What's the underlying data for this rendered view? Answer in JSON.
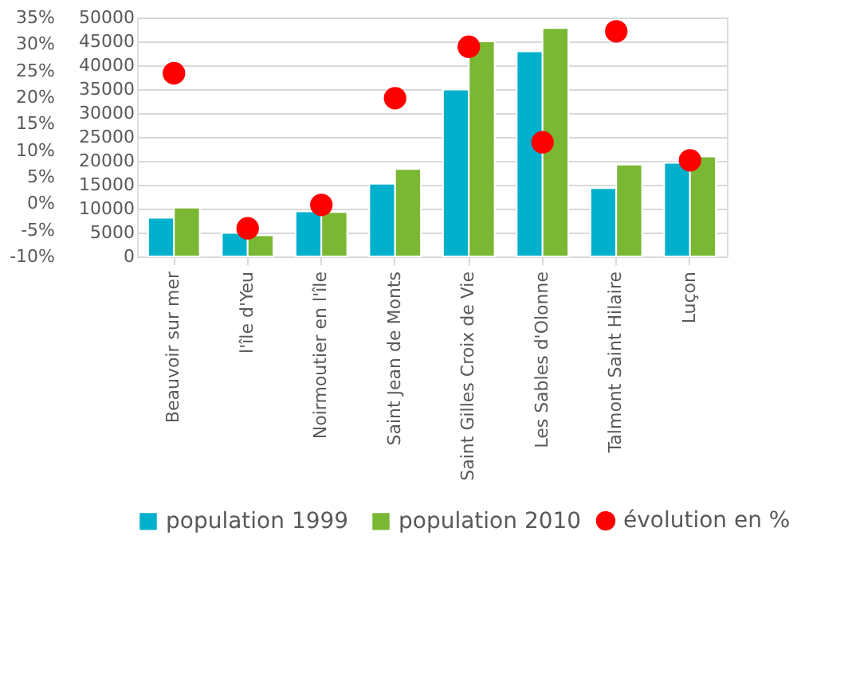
{
  "chart_data": {
    "type": "bar",
    "categories": [
      "Beauvoir sur mer",
      "l'île d'Yeu",
      "Noirmoutier en l'île",
      "Saint Jean de Monts",
      "Saint Gilles Croix de Vie",
      "Les Sables d'Olonne",
      "Talmont Saint Hilaire",
      "Luçon"
    ],
    "series": [
      {
        "name": "population 1999",
        "color": "#00b0cc",
        "values": [
          8100,
          4900,
          9400,
          15200,
          34900,
          42900,
          14300,
          19600
        ]
      },
      {
        "name": "population 2010",
        "color": "#7ab733",
        "values": [
          10200,
          4400,
          9300,
          18300,
          45000,
          47800,
          19200,
          20900
        ]
      },
      {
        "name": "évolution en %",
        "type": "scatter",
        "axis": "y2",
        "color": "#ff0000",
        "marker": "circle",
        "values": [
          24.5,
          -4.7,
          -0.3,
          19.8,
          29.5,
          11.5,
          32.4,
          8.1
        ]
      }
    ],
    "ylim": [
      0,
      50000
    ],
    "yticks": [
      0,
      5000,
      10000,
      15000,
      20000,
      25000,
      30000,
      35000,
      40000,
      45000,
      50000
    ],
    "y2lim": [
      -10,
      35
    ],
    "y2ticks": [
      {
        "value": -10,
        "label": "-10%"
      },
      {
        "value": -5,
        "label": "-5%"
      },
      {
        "value": 0,
        "label": "0%"
      },
      {
        "value": 5,
        "label": "5%"
      },
      {
        "value": 10,
        "label": "10%"
      },
      {
        "value": 15,
        "label": "15%"
      },
      {
        "value": 20,
        "label": "20%"
      },
      {
        "value": 25,
        "label": "25%"
      },
      {
        "value": 30,
        "label": "30%"
      },
      {
        "value": 35,
        "label": "35%"
      }
    ],
    "grid": "y",
    "legend": "bottom"
  }
}
